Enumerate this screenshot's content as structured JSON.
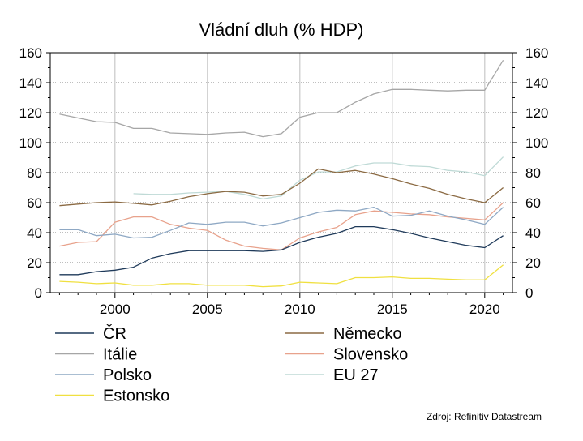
{
  "chart_data": {
    "type": "line",
    "title": "Vládní dluh (% HDP)",
    "xlabel": "",
    "ylabel": "",
    "x": [
      1997,
      1998,
      1999,
      2000,
      2001,
      2002,
      2003,
      2004,
      2005,
      2006,
      2007,
      2008,
      2009,
      2010,
      2011,
      2012,
      2013,
      2014,
      2015,
      2016,
      2017,
      2018,
      2019,
      2020,
      2021
    ],
    "xlim": [
      1996.5,
      2021.5
    ],
    "ylim": [
      0,
      160
    ],
    "x_ticks": [
      2000,
      2005,
      2010,
      2015,
      2020
    ],
    "x_tick_labels": [
      "2000",
      "2005",
      "2010",
      "2015",
      "2020"
    ],
    "y_ticks": [
      0,
      20,
      40,
      60,
      80,
      100,
      120,
      140,
      160
    ],
    "y_tick_labels": [
      "0",
      "20",
      "40",
      "60",
      "80",
      "100",
      "120",
      "140",
      "160"
    ],
    "secondary_y_axis": true,
    "grid": "dotted horizontal, solid vertical at labelled years",
    "legend_position": "bottom",
    "series": [
      {
        "name": "ČR",
        "color": "#1f3a5a",
        "values": [
          12,
          12,
          14,
          15,
          17,
          23,
          26,
          28,
          28,
          28,
          28,
          27.5,
          28.5,
          33.5,
          37,
          39.5,
          44,
          44,
          42,
          39.5,
          36.5,
          34,
          31.5,
          30,
          38
        ]
      },
      {
        "name": "Německo",
        "color": "#8b6a43",
        "values": [
          58,
          59,
          60,
          60.5,
          59.5,
          58.5,
          61,
          64,
          66,
          67.5,
          67,
          64.5,
          65.5,
          73,
          82.5,
          80,
          81.5,
          79,
          76,
          72.5,
          69.5,
          65.5,
          62.5,
          60,
          70
        ]
      },
      {
        "name": "Itálie",
        "color": "#a6a6a6",
        "values": [
          119,
          116.5,
          114,
          113.5,
          109.5,
          109.5,
          106.5,
          106,
          105.5,
          106.5,
          107,
          104,
          106,
          117,
          120,
          120,
          127,
          132.5,
          135.5,
          135.5,
          135,
          134.5,
          135,
          135,
          155
        ]
      },
      {
        "name": "Slovensko",
        "color": "#e8a28c",
        "values": [
          31,
          33.5,
          34,
          47,
          50.5,
          50.5,
          45.5,
          43,
          41.5,
          35,
          31,
          29.5,
          28.5,
          36.5,
          40.5,
          43.5,
          52,
          54.5,
          53.5,
          52.5,
          52,
          50.5,
          49.5,
          48.5,
          60
        ]
      },
      {
        "name": "Polsko",
        "color": "#8ea8c4",
        "values": [
          42,
          42,
          38,
          39,
          36.5,
          37,
          41.5,
          46.5,
          45.5,
          47,
          47,
          44.5,
          46.5,
          50,
          53.5,
          55,
          54.5,
          57,
          51,
          51.5,
          54.5,
          51,
          48.5,
          45.5,
          57
        ]
      },
      {
        "name": "EU 27",
        "color": "#bfdad6",
        "values": [
          null,
          null,
          null,
          null,
          66,
          65.5,
          65.5,
          66.5,
          67,
          67.5,
          65.5,
          62.5,
          64.5,
          75,
          80.5,
          80.5,
          84.5,
          86.5,
          86.5,
          84.5,
          84,
          81.5,
          80.5,
          78,
          90.5
        ]
      },
      {
        "name": "Estonsko",
        "color": "#f0e040",
        "values": [
          7.5,
          7,
          6,
          6.5,
          5,
          5,
          6,
          6,
          5,
          5,
          5,
          4,
          4.5,
          7,
          6.5,
          6,
          10,
          10,
          10.5,
          9.5,
          9.5,
          9,
          8.5,
          8.5,
          18.5
        ]
      }
    ],
    "legend_layout": {
      "left": [
        "ČR",
        "Itálie",
        "Polsko",
        "Estonsko"
      ],
      "right": [
        "Německo",
        "Slovensko",
        "EU 27"
      ]
    },
    "source": "Zdroj: Refinitiv Datastream"
  }
}
